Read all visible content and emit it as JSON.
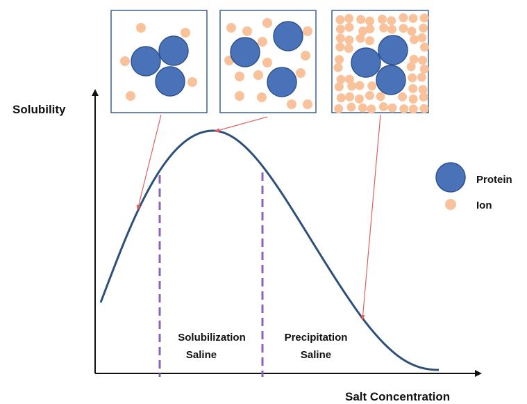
{
  "axes": {
    "y_label": "Solubility",
    "x_label": "Salt Concentration"
  },
  "legend": {
    "protein": "Protein",
    "ion": "Ion"
  },
  "regions": [
    {
      "lines": [
        "Solubilization",
        "Saline"
      ]
    },
    {
      "lines": [
        "Precipitation",
        "Saline"
      ]
    }
  ]
}
